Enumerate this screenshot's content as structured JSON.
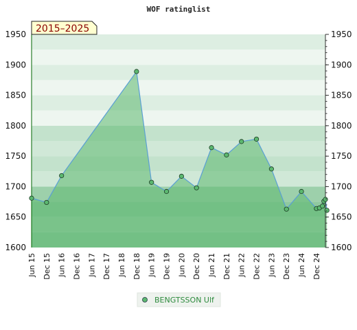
{
  "chart_data": {
    "type": "area",
    "title": "WOF ratinglist",
    "badge": "2015–2025",
    "xlabel": "",
    "ylabel": "",
    "ylim": [
      1600,
      1950
    ],
    "yticks": [
      1600,
      1650,
      1700,
      1750,
      1800,
      1850,
      1900,
      1950
    ],
    "xlim": [
      2015.5,
      2025.3
    ],
    "xticks": [
      {
        "label": "Jun 15",
        "t": 2015.5
      },
      {
        "label": "Dec 15",
        "t": 2016.0
      },
      {
        "label": "Jun 16",
        "t": 2016.5
      },
      {
        "label": "Dec 16",
        "t": 2017.0
      },
      {
        "label": "Jun 17",
        "t": 2017.5
      },
      {
        "label": "Dec 17",
        "t": 2018.0
      },
      {
        "label": "Jun 18",
        "t": 2018.5
      },
      {
        "label": "Dec 18",
        "t": 2019.0
      },
      {
        "label": "Jun 19",
        "t": 2019.5
      },
      {
        "label": "Dec 19",
        "t": 2020.0
      },
      {
        "label": "Jun 20",
        "t": 2020.5
      },
      {
        "label": "Dec 20",
        "t": 2021.0
      },
      {
        "label": "Jun 21",
        "t": 2021.5
      },
      {
        "label": "Dec 21",
        "t": 2022.0
      },
      {
        "label": "Jun 22",
        "t": 2022.5
      },
      {
        "label": "Dec 22",
        "t": 2023.0
      },
      {
        "label": "Jun 23",
        "t": 2023.5
      },
      {
        "label": "Dec 23",
        "t": 2024.0
      },
      {
        "label": "Jun 24",
        "t": 2024.5
      },
      {
        "label": "Dec 24",
        "t": 2025.0
      }
    ],
    "series": [
      {
        "name": "BENGTSSON Ulf",
        "color": "#5cb870",
        "line_color": "#5a9fd4",
        "points": [
          {
            "t": 2015.5,
            "y": 1681
          },
          {
            "t": 2016.0,
            "y": 1674
          },
          {
            "t": 2016.5,
            "y": 1718
          },
          {
            "t": 2019.0,
            "y": 1889
          },
          {
            "t": 2019.5,
            "y": 1707
          },
          {
            "t": 2020.0,
            "y": 1692
          },
          {
            "t": 2020.5,
            "y": 1717
          },
          {
            "t": 2021.0,
            "y": 1698
          },
          {
            "t": 2021.5,
            "y": 1764
          },
          {
            "t": 2022.0,
            "y": 1752
          },
          {
            "t": 2022.5,
            "y": 1774
          },
          {
            "t": 2023.0,
            "y": 1778
          },
          {
            "t": 2023.5,
            "y": 1729
          },
          {
            "t": 2024.0,
            "y": 1663
          },
          {
            "t": 2024.5,
            "y": 1692
          },
          {
            "t": 2025.0,
            "y": 1664
          },
          {
            "t": 2025.1,
            "y": 1665
          },
          {
            "t": 2025.2,
            "y": 1668
          },
          {
            "t": 2025.25,
            "y": 1676
          },
          {
            "t": 2025.3,
            "y": 1679
          },
          {
            "t": 2025.35,
            "y": 1661
          }
        ]
      }
    ],
    "grid": true,
    "legend": "bottom-center"
  }
}
